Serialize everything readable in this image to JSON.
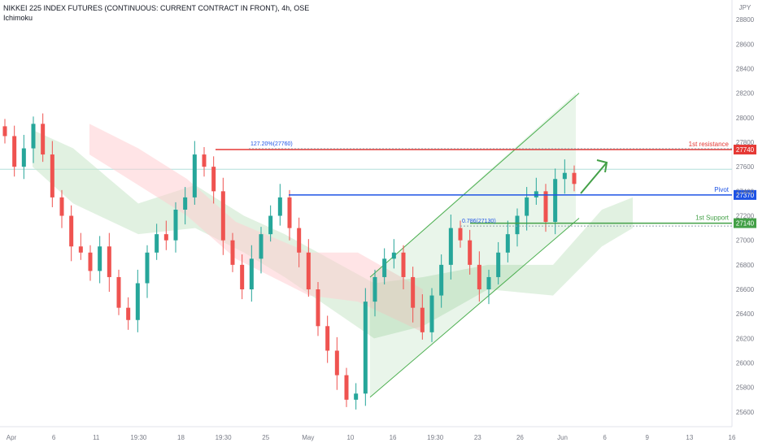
{
  "header": {
    "title": "NIKKEI 225 INDEX FUTURES (CONTINUOUS: CURRENT CONTRACT IN FRONT), 4h, OSE",
    "indicator": "Ichimoku"
  },
  "colors": {
    "up": "#26a69a",
    "down": "#ef5350",
    "resistance": "#e53935",
    "pivot": "#1e53e5",
    "support": "#43a047",
    "channel": "#4caf50",
    "cloud_bull": "#c8e6c9",
    "cloud_bear": "#ffcdd2",
    "axis_text": "#787b86"
  },
  "chart_data": {
    "type": "candlestick",
    "currency": "JPY",
    "ylim": [
      25480,
      28960
    ],
    "y_ticks": [
      25600,
      25800,
      26000,
      26200,
      26400,
      26600,
      26800,
      27000,
      27200,
      27400,
      27600,
      27800,
      28000,
      28200,
      28400,
      28600,
      28800
    ],
    "x_ticks": [
      "Apr",
      "6",
      "11",
      "19:30",
      "18",
      "19:30",
      "25",
      "May",
      "10",
      "16",
      "19:30",
      "23",
      "26",
      "Jun",
      "6",
      "9",
      "13",
      "16"
    ],
    "levels": [
      {
        "name": "1st resistance",
        "value": 27740
      },
      {
        "name": "Pivot",
        "value": 27370
      },
      {
        "name": "1st Support",
        "value": 27140
      }
    ],
    "fib_labels": [
      {
        "text": "127.20%(27760)",
        "value": 27760
      },
      {
        "text": "0.786(27130)",
        "value": 27130
      }
    ],
    "channel": {
      "lower": [
        [
          25720,
          27160
        ]
      ],
      "upper": [
        [
          26700,
          28200
        ]
      ]
    },
    "close_approx": [
      27850,
      27600,
      27750,
      27950,
      27700,
      27350,
      27200,
      26950,
      26900,
      26750,
      26950,
      26700,
      26450,
      26350,
      26650,
      26900,
      27050,
      27000,
      27250,
      27350,
      27700,
      27600,
      27400,
      27000,
      26800,
      26600,
      26850,
      27050,
      27200,
      27350,
      27100,
      26900,
      26600,
      26300,
      26100,
      25900,
      25700,
      25750,
      26500,
      26700,
      26850,
      26900,
      26700,
      26450,
      26250,
      26550,
      26800,
      27100,
      27000,
      26800,
      26600,
      26700,
      26900,
      27050,
      27200,
      27350,
      27400,
      27150,
      27500,
      27550,
      27460
    ]
  }
}
